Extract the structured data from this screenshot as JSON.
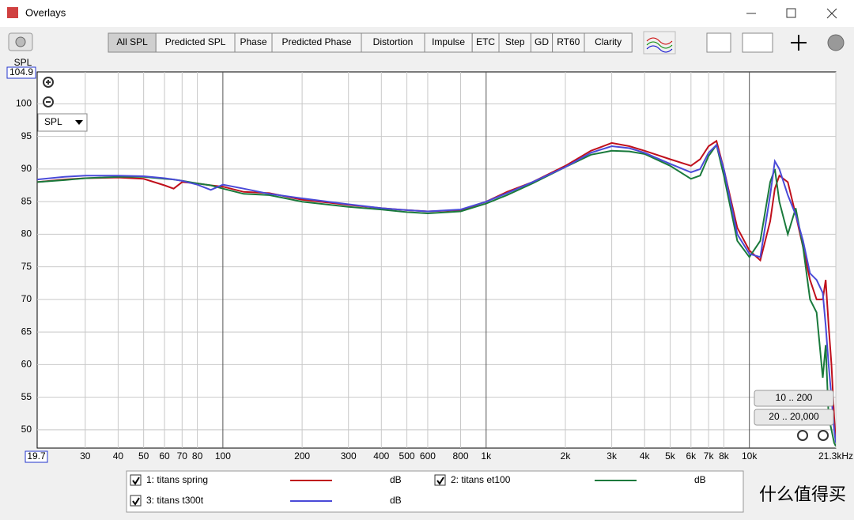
{
  "window": {
    "title": "Overlays"
  },
  "toolbar": {
    "tabs": [
      "All SPL",
      "Predicted SPL",
      "Phase",
      "Predicted Phase",
      "Distortion",
      "Impulse",
      "ETC",
      "Step",
      "GD",
      "RT60",
      "Clarity"
    ]
  },
  "controls": {
    "dropdown": "SPL",
    "range_buttons": [
      "10 .. 200",
      "20 .. 20,000"
    ]
  },
  "watermark": "什么值得买",
  "chart_data": {
    "type": "line",
    "y_label": "SPL",
    "xscale": "log",
    "grid": true,
    "xlim": [
      19.7,
      21300
    ],
    "ylim": [
      47.2,
      104.9
    ],
    "xticks": [
      30,
      40,
      50,
      60,
      70,
      80,
      100,
      200,
      300,
      400,
      500,
      600,
      800,
      {
        "value": 1000,
        "label": "1k"
      },
      {
        "value": 2000,
        "label": "2k"
      },
      {
        "value": 3000,
        "label": "3k"
      },
      {
        "value": 4000,
        "label": "4k"
      },
      {
        "value": 5000,
        "label": "5k"
      },
      {
        "value": 6000,
        "label": "6k"
      },
      {
        "value": 7000,
        "label": "7k"
      },
      {
        "value": 8000,
        "label": "8k"
      },
      {
        "value": 10000,
        "label": "10k"
      },
      {
        "value": 21300,
        "label": "21.3kHz"
      }
    ],
    "yticks": [
      50,
      55,
      60,
      65,
      70,
      75,
      80,
      85,
      90,
      95,
      100
    ],
    "x": [
      19.7,
      25,
      30,
      40,
      50,
      60,
      65,
      70,
      80,
      90,
      100,
      120,
      150,
      200,
      300,
      400,
      500,
      600,
      800,
      1000,
      1200,
      1500,
      2000,
      2500,
      3000,
      3500,
      4000,
      5000,
      6000,
      6500,
      7000,
      7500,
      8000,
      9000,
      10000,
      11000,
      12000,
      12500,
      13000,
      14000,
      15000,
      16000,
      17000,
      18000,
      19000,
      19500,
      20000,
      20500,
      21000,
      21300
    ],
    "series": [
      {
        "name": "1: titans spring",
        "unit": "dB",
        "color": "#c0101c",
        "values": [
          88,
          88.4,
          88.6,
          88.7,
          88.5,
          87.5,
          87.0,
          88.0,
          87.8,
          87.5,
          87.3,
          86.5,
          86.3,
          85.3,
          84.5,
          84,
          83.7,
          83.5,
          83.7,
          85,
          86.5,
          88,
          90.5,
          92.8,
          94,
          93.5,
          92.8,
          91.5,
          90.5,
          91.5,
          93.5,
          94.3,
          90,
          81,
          77.5,
          76,
          82,
          87,
          89,
          88,
          83,
          78,
          73,
          70,
          70,
          73,
          66,
          60,
          52,
          48
        ]
      },
      {
        "name": "2: titans et100",
        "unit": "dB",
        "color": "#1a7a3c",
        "values": [
          88,
          88.3,
          88.6,
          88.8,
          88.8,
          88.5,
          88.4,
          88.2,
          87.8,
          87.5,
          87,
          86.2,
          86,
          85,
          84.2,
          83.8,
          83.4,
          83.2,
          83.5,
          84.7,
          86,
          87.8,
          90.3,
          92.2,
          92.8,
          92.7,
          92.3,
          90.5,
          88.5,
          89,
          92,
          93.7,
          89,
          79,
          76.5,
          79,
          88,
          90,
          85,
          80,
          84,
          78,
          70,
          68,
          58,
          63,
          52,
          50,
          48,
          47.5
        ]
      },
      {
        "name": "3: titans t300t",
        "unit": "dB",
        "color": "#4a4ad8",
        "values": [
          88.4,
          88.8,
          89,
          89,
          88.9,
          88.6,
          88.4,
          88.2,
          87.6,
          86.8,
          87.6,
          87,
          86.2,
          85.5,
          84.6,
          84,
          83.7,
          83.5,
          83.8,
          85,
          86.3,
          88,
          90.3,
          92.5,
          93.5,
          93.2,
          92.5,
          90.8,
          89.5,
          90,
          92.5,
          93.7,
          90,
          80,
          77,
          76.5,
          86,
          91.2,
          90,
          86,
          83,
          79,
          74,
          73,
          71,
          66,
          60,
          55,
          50,
          48
        ]
      }
    ]
  }
}
